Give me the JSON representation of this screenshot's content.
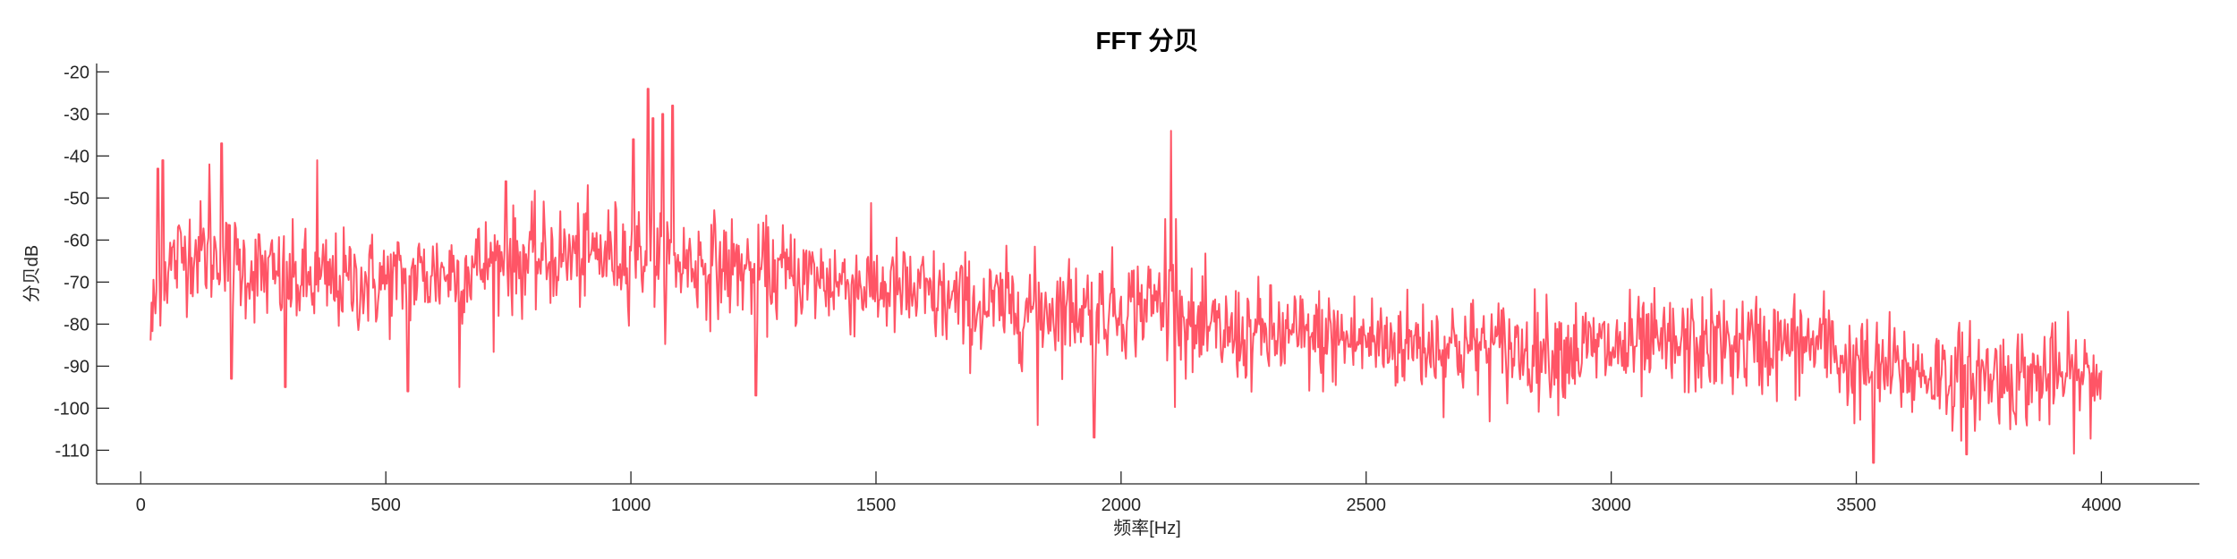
{
  "chart_data": {
    "type": "line",
    "title": "FFT 分贝",
    "xlabel": "频率[Hz]",
    "ylabel": "分贝dB",
    "xlim": [
      -90,
      4200
    ],
    "ylim": [
      -118,
      -18
    ],
    "xticks": [
      0,
      500,
      1000,
      1500,
      2000,
      2500,
      3000,
      3500,
      4000
    ],
    "yticks": [
      -20,
      -30,
      -40,
      -50,
      -60,
      -70,
      -80,
      -90,
      -100,
      -110
    ],
    "xtick_labels": [
      "0",
      "500",
      "1000",
      "1500",
      "2000",
      "2500",
      "3000",
      "3500",
      "4000"
    ],
    "ytick_labels": [
      "-20",
      "-30",
      "-40",
      "-50",
      "-60",
      "-70",
      "-80",
      "-90",
      "-100",
      "-110"
    ],
    "grid": false,
    "series": [
      {
        "color": "#ff5566",
        "x_range": [
          20,
          4000
        ],
        "x_step": 2,
        "envelope": [
          [
            20,
            -82
          ],
          [
            40,
            -68
          ],
          [
            100,
            -62
          ],
          [
            200,
            -66
          ],
          [
            300,
            -70
          ],
          [
            500,
            -70
          ],
          [
            700,
            -66
          ],
          [
            850,
            -64
          ],
          [
            1000,
            -63
          ],
          [
            1100,
            -65
          ],
          [
            1300,
            -68
          ],
          [
            1500,
            -71
          ],
          [
            1700,
            -76
          ],
          [
            2000,
            -76
          ],
          [
            2100,
            -74
          ],
          [
            2150,
            -82
          ],
          [
            2500,
            -84
          ],
          [
            2800,
            -86
          ],
          [
            3000,
            -86
          ],
          [
            3200,
            -85
          ],
          [
            3450,
            -85
          ],
          [
            3480,
            -90
          ],
          [
            3700,
            -92
          ],
          [
            4000,
            -93
          ]
        ],
        "noise_std_db": 6,
        "peaks": [
          {
            "x": 1035,
            "y": -24
          },
          {
            "x": 1045,
            "y": -31
          },
          {
            "x": 1065,
            "y": -30
          },
          {
            "x": 1085,
            "y": -28
          },
          {
            "x": 1005,
            "y": -36
          },
          {
            "x": 2102,
            "y": -34
          },
          {
            "x": 2090,
            "y": -55
          },
          {
            "x": 2112,
            "y": -55
          },
          {
            "x": 35,
            "y": -43
          },
          {
            "x": 45,
            "y": -41
          },
          {
            "x": 140,
            "y": -42
          },
          {
            "x": 165,
            "y": -37
          },
          {
            "x": 360,
            "y": -41
          },
          {
            "x": 650,
            "y": -46
          },
          {
            "x": 745,
            "y": -46
          }
        ],
        "dips": [
          {
            "x": 185,
            "y": -93
          },
          {
            "x": 295,
            "y": -95
          },
          {
            "x": 545,
            "y": -96
          },
          {
            "x": 650,
            "y": -95
          },
          {
            "x": 1255,
            "y": -97
          },
          {
            "x": 1830,
            "y": -104
          },
          {
            "x": 1945,
            "y": -107
          },
          {
            "x": 3535,
            "y": -113
          },
          {
            "x": 3725,
            "y": -111
          }
        ]
      }
    ]
  }
}
